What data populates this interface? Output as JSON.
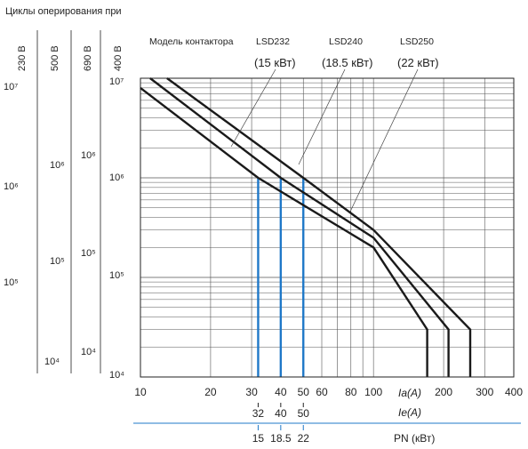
{
  "chart_data": {
    "type": "line",
    "title": "Циклы оперирования при",
    "x_scale": "log",
    "xlim": [
      10,
      400
    ],
    "ylim": [
      10000,
      10000000
    ],
    "y_scale": "log",
    "ie_label": "Ia(A)",
    "ia_label": "Ie(A)",
    "pn_label": "PN (кВт)",
    "ia_ticks": [
      10,
      20,
      30,
      40,
      50,
      60,
      80,
      100,
      200,
      300,
      400
    ],
    "ie_ticks": [
      32,
      40,
      50
    ],
    "pn_ticks": [
      "15",
      "18.5",
      "22"
    ],
    "voltage_axes": [
      {
        "label": "230 В",
        "decades": [
          "10⁷",
          "10⁶",
          "10⁵"
        ]
      },
      {
        "label": "500 В",
        "decades": [
          "10⁶",
          "10⁵",
          "10⁴"
        ]
      },
      {
        "label": "690 В",
        "decades": [
          "10⁶",
          "10⁵",
          "10⁴"
        ]
      },
      {
        "label": "400 В",
        "decades": [
          "10⁷",
          "10⁶",
          "10⁵",
          "10⁴"
        ]
      }
    ],
    "model_label": "Модель контактора",
    "series": [
      {
        "name": "LSD232",
        "power": "(15 кВт)",
        "x": [
          10,
          32,
          100,
          170,
          170
        ],
        "y": [
          8000000,
          1000000,
          200000,
          30000,
          10000
        ]
      },
      {
        "name": "LSD240",
        "power": "(18.5 кВт)",
        "x": [
          11,
          40,
          100,
          210,
          210
        ],
        "y": [
          10000000,
          1000000,
          250000,
          30000,
          10000
        ]
      },
      {
        "name": "LSD250",
        "power": "(22 кВт)",
        "x": [
          13,
          50,
          100,
          260,
          260
        ],
        "y": [
          10000000,
          1000000,
          300000,
          30000,
          10000
        ]
      }
    ],
    "highlights": [
      {
        "x": 32,
        "y": 1000000
      },
      {
        "x": 40,
        "y": 1000000
      },
      {
        "x": 50,
        "y": 1000000
      }
    ],
    "grid": true,
    "line_color": "#1a1a1a",
    "highlight_color": "#1f78c8",
    "grid_color": "#555555"
  }
}
